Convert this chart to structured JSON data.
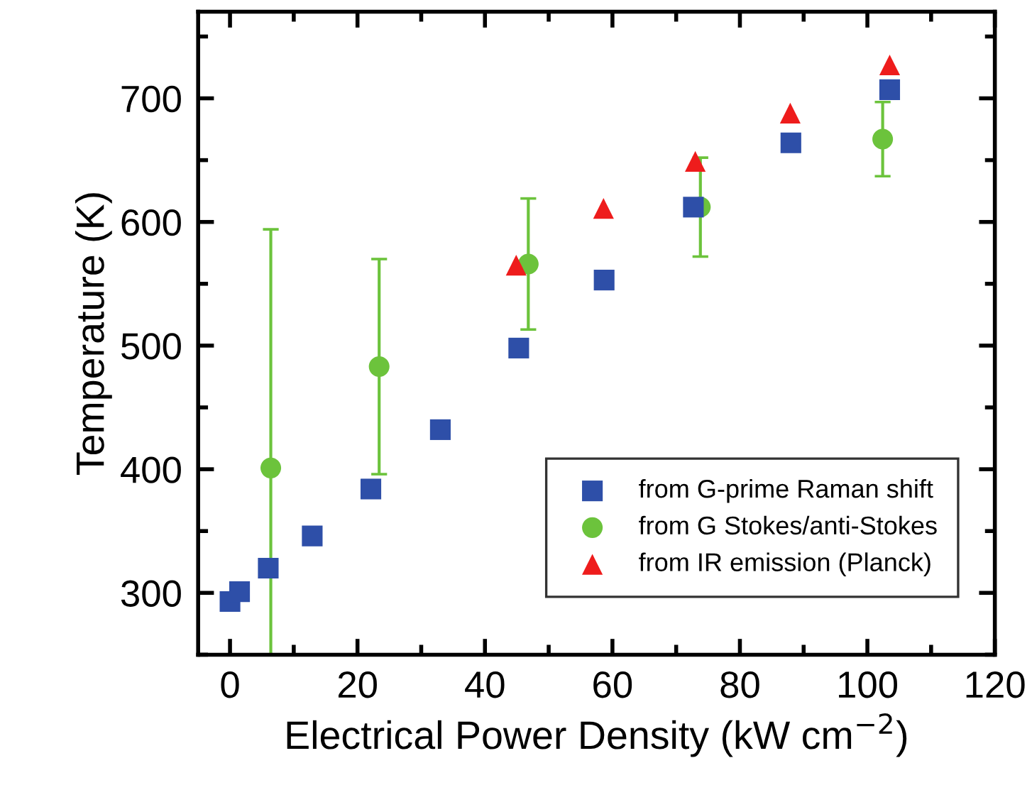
{
  "chart_data": {
    "type": "scatter",
    "xlabel": "Electrical Power Density (kW cm$^{−2}$)",
    "ylabel": "Temperature (K)",
    "xlim": [
      -5,
      120
    ],
    "xticks": [
      0,
      20,
      40,
      60,
      80,
      100,
      120
    ],
    "ylim": [
      250,
      770
    ],
    "yticks": [
      300,
      400,
      500,
      600,
      700
    ],
    "legend": "bottom right",
    "grid": false,
    "series": [
      {
        "name": "from G-prime Raman shift",
        "color": "#2e4fa8",
        "marker": "square",
        "x": [
          0,
          1.5,
          6,
          12.9,
          22.1,
          33,
          45.3,
          58.7,
          72.7,
          88,
          103.5
        ],
        "values": [
          293,
          301,
          320,
          346,
          384,
          432,
          498,
          553,
          612,
          664,
          707
        ]
      },
      {
        "name": "from G Stokes/anti-Stokes",
        "color": "#6cc33c",
        "marker": "circle",
        "x": [
          6.4,
          23.4,
          46.8,
          73.8,
          102.4
        ],
        "values": [
          401,
          483,
          566,
          612,
          667
        ],
        "errors": [
          193,
          87,
          53,
          40,
          30
        ]
      },
      {
        "name": "from IR emission (Planck)",
        "color": "#ee1c1c",
        "marker": "triangle",
        "x": [
          44.9,
          58.6,
          73,
          87.9,
          103.5
        ],
        "values": [
          565,
          611,
          649,
          688,
          727
        ]
      }
    ]
  }
}
